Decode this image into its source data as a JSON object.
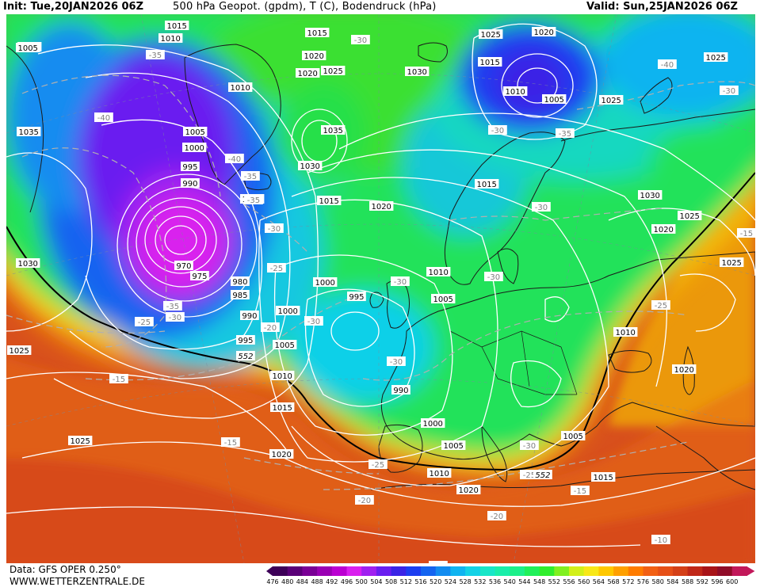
{
  "header": {
    "init": "Init: Tue,20JAN2026 06Z",
    "title": "500 hPa Geopot. (gpdm), T (C), Bodendruck (hPa)",
    "valid": "Valid: Sun,25JAN2026 06Z"
  },
  "footer": {
    "data_source": "Data: GFS OPER 0.250°",
    "website": "WWW.WETTERZENTRALE.DE"
  },
  "colorbar": {
    "labels": [
      "476",
      "480",
      "484",
      "488",
      "492",
      "496",
      "500",
      "504",
      "508",
      "512",
      "516",
      "520",
      "524",
      "528",
      "532",
      "536",
      "540",
      "544",
      "548",
      "552",
      "556",
      "560",
      "564",
      "568",
      "572",
      "576",
      "580",
      "584",
      "588",
      "592",
      "596",
      "600"
    ],
    "colors": [
      "#3d0058",
      "#5a0078",
      "#7a0096",
      "#9a00b4",
      "#bb00d2",
      "#d920ee",
      "#a020f0",
      "#6a1ef0",
      "#3a24e6",
      "#1c3ef0",
      "#1464f0",
      "#128cf0",
      "#10b4f0",
      "#14d2e6",
      "#18e6c8",
      "#1aeeaa",
      "#1cf08a",
      "#20f05a",
      "#30ee2e",
      "#80f020",
      "#d2f01a",
      "#f8e818",
      "#ffc800",
      "#ffa000",
      "#ff7c00",
      "#f26014",
      "#e65018",
      "#d44018",
      "#c02818",
      "#a81418",
      "#900c28",
      "#c2185a"
    ]
  },
  "map_labels": {
    "pressure": [
      {
        "t": "1015"
      },
      {
        "t": "1010"
      },
      {
        "t": "1035"
      },
      {
        "t": "1005"
      },
      {
        "t": "1010"
      },
      {
        "t": "1015"
      },
      {
        "t": "1020"
      },
      {
        "t": "1025"
      },
      {
        "t": "1020"
      },
      {
        "t": "1030"
      },
      {
        "t": "1025"
      },
      {
        "t": "1020"
      },
      {
        "t": "1015"
      },
      {
        "t": "1010"
      },
      {
        "t": "1005"
      },
      {
        "t": "1025"
      },
      {
        "t": "1025"
      },
      {
        "t": "1035"
      },
      {
        "t": "1005"
      },
      {
        "t": "1000"
      },
      {
        "t": "995"
      },
      {
        "t": "990"
      },
      {
        "t": "1030"
      },
      {
        "t": "1035"
      },
      {
        "t": "1005"
      },
      {
        "t": "1015"
      },
      {
        "t": "1020"
      },
      {
        "t": "1015"
      },
      {
        "t": "1030"
      },
      {
        "t": "1025"
      },
      {
        "t": "1020"
      },
      {
        "t": "1030"
      },
      {
        "t": "970"
      },
      {
        "t": "975"
      },
      {
        "t": "980"
      },
      {
        "t": "985"
      },
      {
        "t": "1010"
      },
      {
        "t": "1000"
      },
      {
        "t": "995"
      },
      {
        "t": "1005"
      },
      {
        "t": "1025"
      },
      {
        "t": "1000"
      },
      {
        "t": "990"
      },
      {
        "t": "995"
      },
      {
        "t": "1005"
      },
      {
        "t": "1010"
      },
      {
        "t": "990"
      },
      {
        "t": "1025"
      },
      {
        "t": "1010"
      },
      {
        "t": "1015"
      },
      {
        "t": "1000"
      },
      {
        "t": "1020"
      },
      {
        "t": "1025"
      },
      {
        "t": "1005"
      },
      {
        "t": "1005"
      },
      {
        "t": "1020"
      },
      {
        "t": "1010"
      },
      {
        "t": "1020"
      },
      {
        "t": "1015"
      }
    ],
    "temperature": [
      {
        "t": "-30"
      },
      {
        "t": "-35"
      },
      {
        "t": "-40"
      },
      {
        "t": "-40"
      },
      {
        "t": "-40"
      },
      {
        "t": "-35"
      },
      {
        "t": "-35"
      },
      {
        "t": "-30"
      },
      {
        "t": "-30"
      },
      {
        "t": "-35"
      },
      {
        "t": "-30"
      },
      {
        "t": "-25"
      },
      {
        "t": "-35"
      },
      {
        "t": "-30"
      },
      {
        "t": "-30"
      },
      {
        "t": "-25"
      },
      {
        "t": "-30"
      },
      {
        "t": "-20"
      },
      {
        "t": "-30"
      },
      {
        "t": "-25"
      },
      {
        "t": "-15"
      },
      {
        "t": "-15"
      },
      {
        "t": "-25"
      },
      {
        "t": "-30"
      },
      {
        "t": "-25"
      },
      {
        "t": "-15"
      },
      {
        "t": "-20"
      },
      {
        "t": "-20"
      },
      {
        "t": "-10"
      },
      {
        "t": "-20"
      },
      {
        "t": "-15"
      },
      {
        "t": "-30"
      },
      {
        "t": "-30"
      }
    ],
    "geopotential": [
      {
        "t": "552"
      },
      {
        "t": "552"
      }
    ]
  }
}
